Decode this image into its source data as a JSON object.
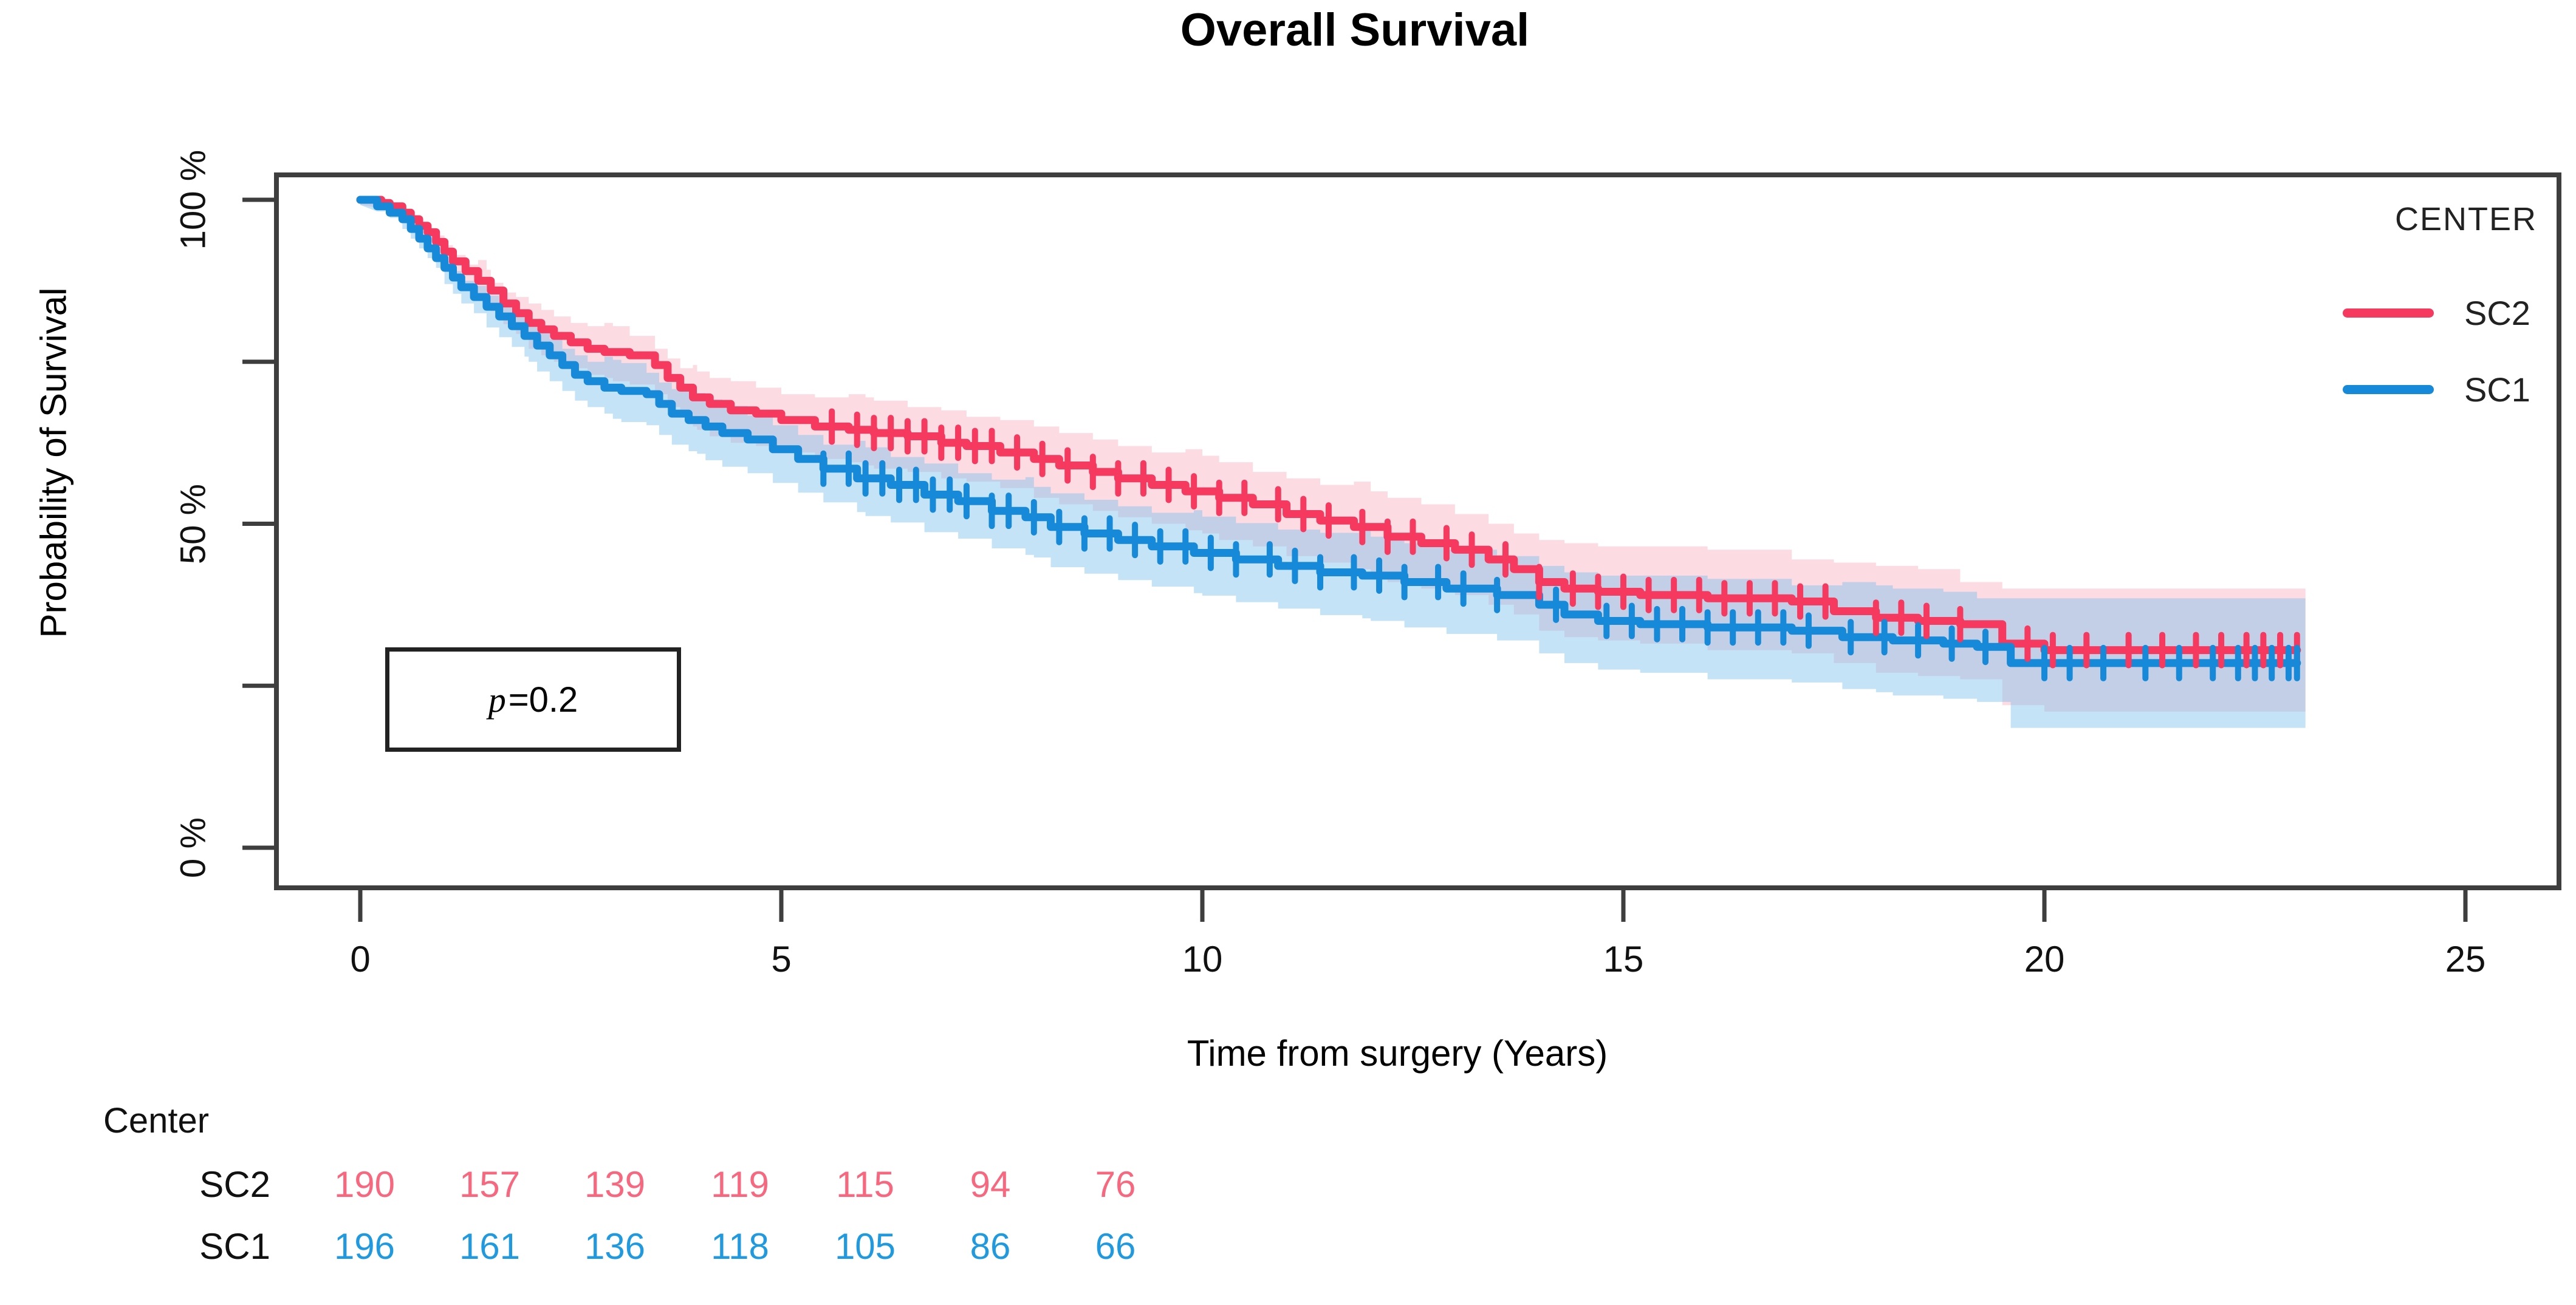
{
  "title": "Overall Survival",
  "axes": {
    "x": {
      "title": "Time from surgery (Years)",
      "ticks": [
        {
          "v": 0,
          "label": "0"
        },
        {
          "v": 5,
          "label": "5"
        },
        {
          "v": 10,
          "label": "10"
        },
        {
          "v": 15,
          "label": "15"
        },
        {
          "v": 20,
          "label": "20"
        },
        {
          "v": 25,
          "label": "25"
        }
      ]
    },
    "y": {
      "title": "Probability of Survival",
      "ticks": [
        {
          "v": 100,
          "label": "100 %"
        },
        {
          "v": 75,
          "label": ""
        },
        {
          "v": 50,
          "label": "50 %"
        },
        {
          "v": 25,
          "label": ""
        },
        {
          "v": 0,
          "label": "0 %"
        }
      ]
    }
  },
  "pvalue": {
    "p": "p",
    "rest": "=0.2"
  },
  "legend": {
    "title": "CENTER",
    "items": [
      {
        "name": "SC2",
        "color": "#F5395F"
      },
      {
        "name": "SC1",
        "color": "#1689D8"
      }
    ]
  },
  "risk_table": {
    "header": "Center",
    "rows": [
      {
        "name": "SC2",
        "color": "#F9677F",
        "values": [
          "190",
          "157",
          "139",
          "119",
          "115",
          "94",
          "76"
        ]
      },
      {
        "name": "SC1",
        "color": "#1F9AE0",
        "values": [
          "196",
          "161",
          "136",
          "118",
          "105",
          "86",
          "66"
        ]
      }
    ]
  },
  "chart_data": {
    "type": "line",
    "subtype": "kaplan-meier-step",
    "title": "Overall Survival",
    "xlabel": "Time from surgery (Years)",
    "ylabel": "Probability of Survival",
    "xlim": [
      0,
      26.1
    ],
    "ylim": [
      0,
      100
    ],
    "grid": false,
    "legend_position": "top-right",
    "p_value": 0.2,
    "series": [
      {
        "name": "SC2",
        "color": "#F5395F",
        "band_color": "#F7A9BC",
        "band_opacity": 0.42,
        "end_time": 23.1,
        "steps": [
          [
            0,
            100
          ],
          [
            0.25,
            99.5
          ],
          [
            0.35,
            99
          ],
          [
            0.5,
            98
          ],
          [
            0.6,
            97
          ],
          [
            0.7,
            96
          ],
          [
            0.8,
            95
          ],
          [
            0.9,
            93.5
          ],
          [
            1.0,
            92
          ],
          [
            1.1,
            90.5
          ],
          [
            1.25,
            89
          ],
          [
            1.4,
            87.5
          ],
          [
            1.55,
            86
          ],
          [
            1.7,
            84
          ],
          [
            1.85,
            82.5
          ],
          [
            2.0,
            81
          ],
          [
            2.15,
            80
          ],
          [
            2.3,
            79
          ],
          [
            2.5,
            78
          ],
          [
            2.7,
            77
          ],
          [
            2.9,
            76.5
          ],
          [
            3.2,
            76
          ],
          [
            3.5,
            74.5
          ],
          [
            3.65,
            72.5
          ],
          [
            3.8,
            71
          ],
          [
            3.95,
            69.5
          ],
          [
            4.15,
            68.5
          ],
          [
            4.4,
            67.5
          ],
          [
            4.7,
            67
          ],
          [
            5.0,
            66
          ],
          [
            5.4,
            65
          ],
          [
            5.8,
            64.5
          ],
          [
            6.1,
            64
          ],
          [
            6.5,
            63.5
          ],
          [
            6.9,
            62.5
          ],
          [
            7.2,
            62
          ],
          [
            7.6,
            61
          ],
          [
            8.0,
            60
          ],
          [
            8.3,
            59
          ],
          [
            8.7,
            58
          ],
          [
            9.0,
            57
          ],
          [
            9.4,
            56
          ],
          [
            9.8,
            55
          ],
          [
            10.2,
            54
          ],
          [
            10.6,
            53
          ],
          [
            11.0,
            51.5
          ],
          [
            11.4,
            50.5
          ],
          [
            11.8,
            49.5
          ],
          [
            12.2,
            48
          ],
          [
            12.6,
            47
          ],
          [
            13.0,
            46
          ],
          [
            13.4,
            44.5
          ],
          [
            13.7,
            43
          ],
          [
            14.0,
            41
          ],
          [
            14.3,
            40
          ],
          [
            14.7,
            39.5
          ],
          [
            15.2,
            39
          ],
          [
            16.0,
            38.5
          ],
          [
            17.0,
            38
          ],
          [
            17.5,
            36.5
          ],
          [
            18.0,
            35.5
          ],
          [
            18.5,
            35
          ],
          [
            19.0,
            34.5
          ],
          [
            19.5,
            31.5
          ],
          [
            20.0,
            30.5
          ],
          [
            23.0,
            30.5
          ]
        ],
        "band_halfwidth": [
          [
            0,
            0.8
          ],
          [
            0.5,
            1.5
          ],
          [
            1,
            2.5
          ],
          [
            1.5,
            3.2
          ],
          [
            2,
            4
          ],
          [
            3,
            4.5
          ],
          [
            4,
            5
          ],
          [
            6,
            5.5
          ],
          [
            8,
            6
          ],
          [
            10,
            6.5
          ],
          [
            12,
            7
          ],
          [
            14,
            7.5
          ],
          [
            16,
            8
          ],
          [
            18,
            8.5
          ],
          [
            19.5,
            9.5
          ],
          [
            23.1,
            9.5
          ]
        ],
        "censor_times": [
          5.6,
          5.9,
          6.1,
          6.3,
          6.5,
          6.7,
          6.9,
          7.1,
          7.3,
          7.5,
          7.8,
          8.1,
          8.4,
          8.7,
          9.0,
          9.3,
          9.6,
          9.9,
          10.2,
          10.5,
          10.9,
          11.2,
          11.5,
          11.9,
          12.2,
          12.5,
          12.9,
          13.2,
          13.6,
          14.0,
          14.4,
          14.7,
          15.0,
          15.3,
          15.6,
          15.9,
          16.2,
          16.5,
          16.8,
          17.1,
          17.4,
          18.0,
          18.3,
          18.6,
          19.0,
          19.8,
          20.1,
          20.5,
          21.0,
          21.4,
          21.8,
          22.1,
          22.4,
          22.6,
          22.8,
          23.0
        ]
      },
      {
        "name": "SC1",
        "color": "#1689D8",
        "band_color": "#7CC2EC",
        "band_opacity": 0.45,
        "end_time": 23.1,
        "steps": [
          [
            0,
            100
          ],
          [
            0.2,
            99
          ],
          [
            0.35,
            98
          ],
          [
            0.5,
            97
          ],
          [
            0.6,
            95.5
          ],
          [
            0.7,
            94
          ],
          [
            0.8,
            92.5
          ],
          [
            0.9,
            91
          ],
          [
            1.0,
            89.5
          ],
          [
            1.1,
            88
          ],
          [
            1.2,
            86.5
          ],
          [
            1.35,
            85
          ],
          [
            1.5,
            83.5
          ],
          [
            1.65,
            82
          ],
          [
            1.8,
            80.5
          ],
          [
            1.95,
            79
          ],
          [
            2.1,
            77.5
          ],
          [
            2.25,
            76
          ],
          [
            2.4,
            74.5
          ],
          [
            2.55,
            73
          ],
          [
            2.7,
            72
          ],
          [
            2.9,
            71
          ],
          [
            3.1,
            70.5
          ],
          [
            3.4,
            70
          ],
          [
            3.55,
            68.5
          ],
          [
            3.7,
            67
          ],
          [
            3.9,
            66
          ],
          [
            4.1,
            65
          ],
          [
            4.3,
            64
          ],
          [
            4.6,
            63
          ],
          [
            4.9,
            61.5
          ],
          [
            5.2,
            60
          ],
          [
            5.5,
            58.5
          ],
          [
            5.9,
            57
          ],
          [
            6.3,
            56
          ],
          [
            6.7,
            54.5
          ],
          [
            7.1,
            53.5
          ],
          [
            7.5,
            52
          ],
          [
            7.9,
            51
          ],
          [
            8.2,
            49.5
          ],
          [
            8.6,
            48.5
          ],
          [
            9.0,
            47.5
          ],
          [
            9.4,
            46.5
          ],
          [
            9.9,
            45.5
          ],
          [
            10.4,
            44.5
          ],
          [
            10.9,
            43.5
          ],
          [
            11.4,
            42.5
          ],
          [
            11.9,
            42
          ],
          [
            12.4,
            41
          ],
          [
            12.9,
            40
          ],
          [
            13.5,
            39
          ],
          [
            14.0,
            37.5
          ],
          [
            14.3,
            36
          ],
          [
            14.7,
            35
          ],
          [
            15.2,
            34.5
          ],
          [
            16.0,
            34
          ],
          [
            17.0,
            33.5
          ],
          [
            17.6,
            32.5
          ],
          [
            18.2,
            32
          ],
          [
            18.8,
            31.5
          ],
          [
            19.2,
            31
          ],
          [
            19.6,
            28.5
          ],
          [
            23.0,
            28.5
          ]
        ],
        "band_halfwidth": [
          [
            0,
            0.8
          ],
          [
            0.5,
            1.5
          ],
          [
            1,
            2.5
          ],
          [
            1.5,
            3.2
          ],
          [
            2,
            4
          ],
          [
            3,
            4.8
          ],
          [
            4,
            5.2
          ],
          [
            6,
            5.8
          ],
          [
            8,
            6.2
          ],
          [
            10,
            6.6
          ],
          [
            12,
            7
          ],
          [
            14,
            7.5
          ],
          [
            16,
            8
          ],
          [
            18,
            8.5
          ],
          [
            19.6,
            10
          ],
          [
            23.1,
            10
          ]
        ],
        "censor_times": [
          5.5,
          5.8,
          6.0,
          6.2,
          6.4,
          6.6,
          6.8,
          7.0,
          7.2,
          7.5,
          7.7,
          8.0,
          8.3,
          8.6,
          8.9,
          9.2,
          9.5,
          9.8,
          10.1,
          10.4,
          10.8,
          11.1,
          11.4,
          11.8,
          12.1,
          12.4,
          12.8,
          13.1,
          13.5,
          14.2,
          14.8,
          15.1,
          15.4,
          15.7,
          16.0,
          16.3,
          16.6,
          16.9,
          17.2,
          17.7,
          18.1,
          18.5,
          18.9,
          19.3,
          20.0,
          20.3,
          20.7,
          21.2,
          21.6,
          22.0,
          22.3,
          22.5,
          22.7,
          22.9,
          23.0
        ]
      }
    ],
    "risk_table": {
      "header": "Center",
      "rows": [
        {
          "name": "SC2",
          "values": [
            190,
            157,
            139,
            119,
            115,
            94,
            76
          ]
        },
        {
          "name": "SC1",
          "values": [
            196,
            161,
            136,
            118,
            105,
            86,
            66
          ]
        }
      ]
    }
  }
}
